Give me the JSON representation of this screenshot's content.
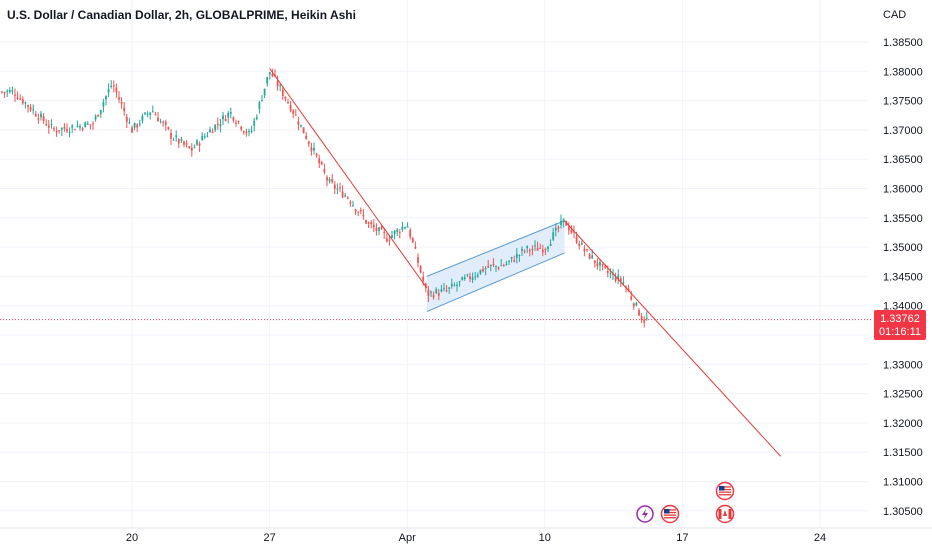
{
  "header": {
    "title": "U.S. Dollar / Canadian Dollar, 2h, GLOBALPRIME, Heikin Ashi",
    "currency": "CAD"
  },
  "price_badge": {
    "price": "1.33762",
    "countdown": "01:16:11"
  },
  "events": {
    "icons": [
      "lightning-icon",
      "us-flag-icon",
      "us-flag-icon",
      "canada-flag-icon"
    ]
  },
  "colors": {
    "up": "#26a69a",
    "down": "#ef5350",
    "drawing": "#e53935",
    "channel_fill": "#dbe9fb",
    "channel_stroke": "#5b9bd5",
    "grid": "#f0f3fa",
    "axis_text": "#131722",
    "badge_bg": "#f23645"
  },
  "chart_data": {
    "type": "candlestick",
    "title": "U.S. Dollar / Canadian Dollar, 2h, GLOBALPRIME, Heikin Ashi",
    "y_unit": "CAD",
    "y_ticks": [
      "1.38500",
      "1.38000",
      "1.37500",
      "1.37000",
      "1.36500",
      "1.36000",
      "1.35500",
      "1.35000",
      "1.34500",
      "1.34000",
      "1.33500",
      "1.33000",
      "1.32500",
      "1.32000",
      "1.31500",
      "1.31000",
      "1.30500"
    ],
    "ylim": [
      1.3035,
      1.3885
    ],
    "x_ticks": [
      "20",
      "27",
      "Apr",
      "10",
      "17",
      "24"
    ],
    "grid": true,
    "current_price": 1.33762,
    "price_path": [
      [
        "Mar 14",
        1.3765
      ],
      [
        "Mar 16",
        1.37
      ],
      [
        "Mar 18",
        1.371
      ],
      [
        "Mar 19",
        1.378
      ],
      [
        "Mar 20",
        1.37
      ],
      [
        "Mar 21",
        1.3735
      ],
      [
        "Mar 22",
        1.369
      ],
      [
        "Mar 23",
        1.3665
      ],
      [
        "Mar 24",
        1.37
      ],
      [
        "Mar 25",
        1.373
      ],
      [
        "Mar 26",
        1.369
      ],
      [
        "Mar 27",
        1.38
      ],
      [
        "Mar 28",
        1.3745
      ],
      [
        "Mar 29",
        1.368
      ],
      [
        "Mar 30",
        1.361
      ],
      [
        "Mar 31",
        1.3585
      ],
      [
        "Apr 1",
        1.354
      ],
      [
        "Apr 2",
        1.3515
      ],
      [
        "Apr 3",
        1.354
      ],
      [
        "Apr 4",
        1.342
      ],
      [
        "Apr 5",
        1.3425
      ],
      [
        "Apr 6",
        1.3445
      ],
      [
        "Apr 7",
        1.3465
      ],
      [
        "Apr 8",
        1.347
      ],
      [
        "Apr 9",
        1.3495
      ],
      [
        "Apr 10",
        1.35
      ],
      [
        "Apr 11",
        1.3545
      ],
      [
        "Apr 12",
        1.3495
      ],
      [
        "Apr 13",
        1.346
      ],
      [
        "Apr 14",
        1.344
      ],
      [
        "Apr 15",
        1.3376
      ]
    ],
    "drawings": [
      {
        "type": "trend_line",
        "from": [
          "Mar 27",
          1.3805
        ],
        "to": [
          "Apr 4",
          1.343
        ]
      },
      {
        "type": "parallel_channel",
        "upper": [
          [
            "Apr 4",
            1.345
          ],
          [
            "Apr 11",
            1.3545
          ]
        ],
        "lower": [
          [
            "Apr 4",
            1.339
          ],
          [
            "Apr 11",
            1.349
          ]
        ]
      },
      {
        "type": "trend_line",
        "from": [
          "Apr 11",
          1.3545
        ],
        "to": [
          "Apr 22",
          1.3143
        ]
      }
    ]
  }
}
